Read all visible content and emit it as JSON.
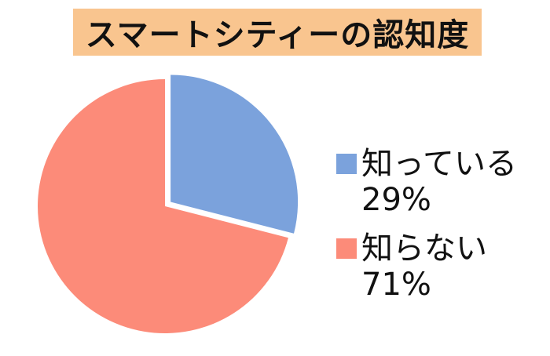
{
  "chart_data": {
    "type": "pie",
    "title": "スマートシティーの認知度",
    "categories": [
      "知っている",
      "知らない"
    ],
    "values": [
      29,
      71
    ],
    "labels": [
      "29%",
      "71%"
    ],
    "colors": [
      "#7ba2dc",
      "#fc8b79"
    ],
    "title_background": "#f9c58f",
    "legend_position": "right",
    "exploded_slice": "知っている"
  }
}
